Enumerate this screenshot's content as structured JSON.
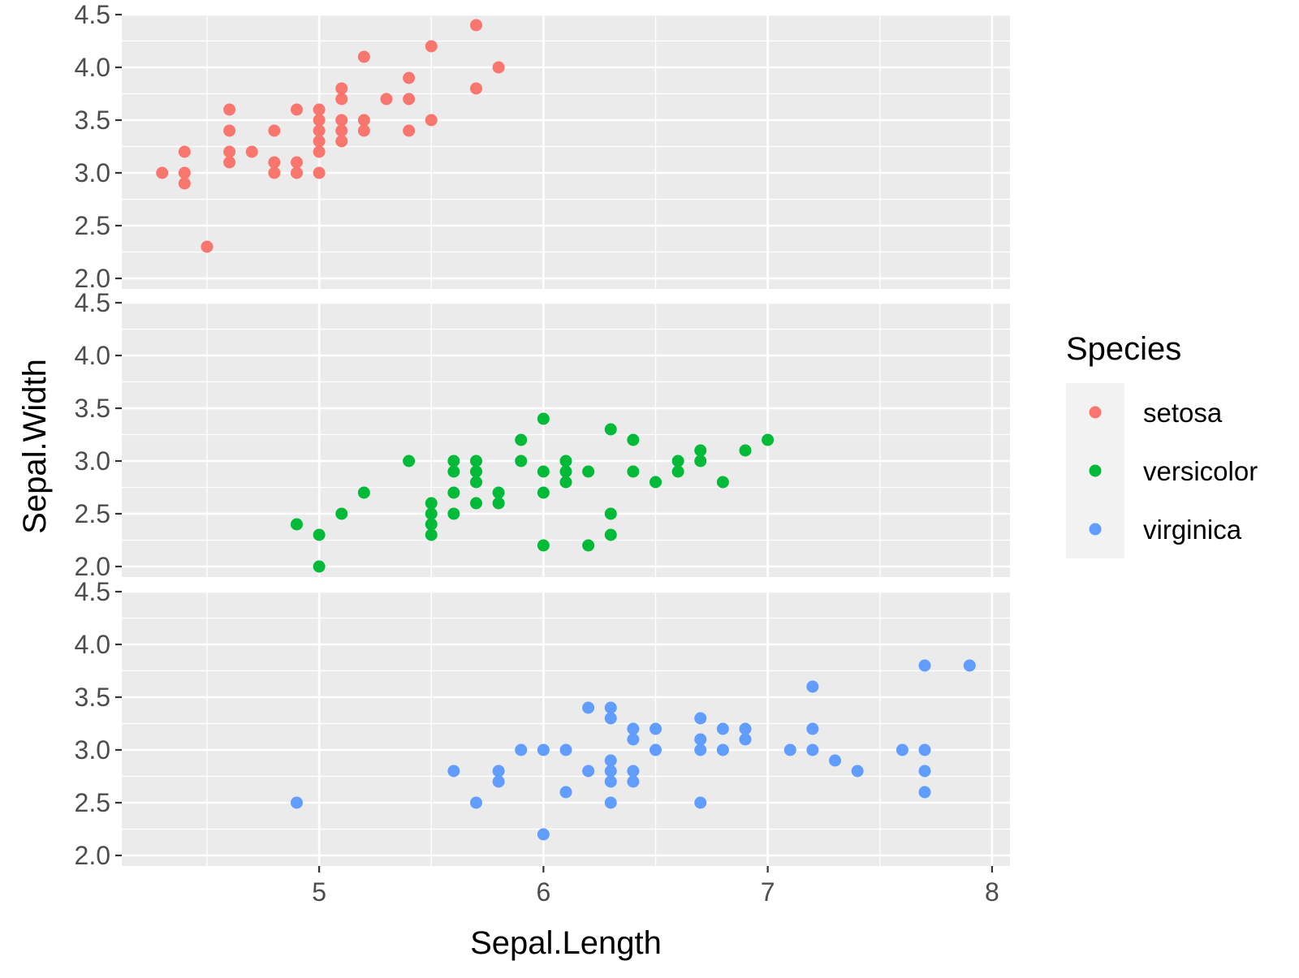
{
  "chart_data": {
    "type": "scatter",
    "facets": "vertical",
    "xlabel": "Sepal.Length",
    "ylabel": "Sepal.Width",
    "xlim": [
      4.12,
      8.08
    ],
    "ylim": [
      1.9,
      4.5
    ],
    "x_ticks": [
      "5",
      "6",
      "7",
      "8"
    ],
    "y_ticks": [
      "2.0",
      "2.5",
      "3.0",
      "3.5",
      "4.0",
      "4.5"
    ],
    "grid": true,
    "legend": {
      "title": "Species",
      "position": "right"
    },
    "series": [
      {
        "name": "setosa",
        "color": "#F8766D",
        "points": [
          [
            4.3,
            3.0
          ],
          [
            4.4,
            2.9
          ],
          [
            4.4,
            3.0
          ],
          [
            4.4,
            3.2
          ],
          [
            4.5,
            2.3
          ],
          [
            4.6,
            3.1
          ],
          [
            4.6,
            3.2
          ],
          [
            4.6,
            3.4
          ],
          [
            4.6,
            3.6
          ],
          [
            4.7,
            3.2
          ],
          [
            4.8,
            3.0
          ],
          [
            4.8,
            3.1
          ],
          [
            4.8,
            3.4
          ],
          [
            4.9,
            3.0
          ],
          [
            4.9,
            3.1
          ],
          [
            4.9,
            3.6
          ],
          [
            5.0,
            3.0
          ],
          [
            5.0,
            3.2
          ],
          [
            5.0,
            3.3
          ],
          [
            5.0,
            3.4
          ],
          [
            5.0,
            3.5
          ],
          [
            5.0,
            3.6
          ],
          [
            5.1,
            3.3
          ],
          [
            5.1,
            3.4
          ],
          [
            5.1,
            3.5
          ],
          [
            5.1,
            3.7
          ],
          [
            5.1,
            3.8
          ],
          [
            5.2,
            3.4
          ],
          [
            5.2,
            3.5
          ],
          [
            5.2,
            4.1
          ],
          [
            5.3,
            3.7
          ],
          [
            5.4,
            3.4
          ],
          [
            5.4,
            3.7
          ],
          [
            5.4,
            3.9
          ],
          [
            5.5,
            3.5
          ],
          [
            5.5,
            4.2
          ],
          [
            5.7,
            3.8
          ],
          [
            5.7,
            4.4
          ],
          [
            5.8,
            4.0
          ]
        ]
      },
      {
        "name": "versicolor",
        "color": "#00BA38",
        "points": [
          [
            4.9,
            2.4
          ],
          [
            5.0,
            2.0
          ],
          [
            5.0,
            2.3
          ],
          [
            5.1,
            2.5
          ],
          [
            5.2,
            2.7
          ],
          [
            5.4,
            3.0
          ],
          [
            5.5,
            2.3
          ],
          [
            5.5,
            2.4
          ],
          [
            5.5,
            2.5
          ],
          [
            5.5,
            2.6
          ],
          [
            5.6,
            2.5
          ],
          [
            5.6,
            2.7
          ],
          [
            5.6,
            2.9
          ],
          [
            5.6,
            3.0
          ],
          [
            5.7,
            2.6
          ],
          [
            5.7,
            2.8
          ],
          [
            5.7,
            2.9
          ],
          [
            5.7,
            3.0
          ],
          [
            5.8,
            2.6
          ],
          [
            5.8,
            2.7
          ],
          [
            5.9,
            3.0
          ],
          [
            5.9,
            3.2
          ],
          [
            6.0,
            2.2
          ],
          [
            6.0,
            2.7
          ],
          [
            6.0,
            2.9
          ],
          [
            6.0,
            3.4
          ],
          [
            6.1,
            2.8
          ],
          [
            6.1,
            2.9
          ],
          [
            6.1,
            3.0
          ],
          [
            6.2,
            2.2
          ],
          [
            6.2,
            2.9
          ],
          [
            6.3,
            2.3
          ],
          [
            6.3,
            2.5
          ],
          [
            6.3,
            3.3
          ],
          [
            6.4,
            2.9
          ],
          [
            6.4,
            3.2
          ],
          [
            6.5,
            2.8
          ],
          [
            6.6,
            2.9
          ],
          [
            6.6,
            3.0
          ],
          [
            6.7,
            3.0
          ],
          [
            6.7,
            3.1
          ],
          [
            6.8,
            2.8
          ],
          [
            6.9,
            3.1
          ],
          [
            7.0,
            3.2
          ]
        ]
      },
      {
        "name": "virginica",
        "color": "#619CFF",
        "points": [
          [
            4.9,
            2.5
          ],
          [
            5.6,
            2.8
          ],
          [
            5.7,
            2.5
          ],
          [
            5.8,
            2.7
          ],
          [
            5.8,
            2.8
          ],
          [
            5.9,
            3.0
          ],
          [
            6.0,
            2.2
          ],
          [
            6.0,
            3.0
          ],
          [
            6.1,
            2.6
          ],
          [
            6.1,
            3.0
          ],
          [
            6.2,
            2.8
          ],
          [
            6.2,
            3.4
          ],
          [
            6.3,
            2.5
          ],
          [
            6.3,
            2.7
          ],
          [
            6.3,
            2.8
          ],
          [
            6.3,
            2.9
          ],
          [
            6.3,
            3.3
          ],
          [
            6.3,
            3.4
          ],
          [
            6.4,
            2.7
          ],
          [
            6.4,
            2.8
          ],
          [
            6.4,
            3.1
          ],
          [
            6.4,
            3.2
          ],
          [
            6.5,
            3.0
          ],
          [
            6.5,
            3.2
          ],
          [
            6.7,
            2.5
          ],
          [
            6.7,
            3.0
          ],
          [
            6.7,
            3.1
          ],
          [
            6.7,
            3.3
          ],
          [
            6.8,
            3.0
          ],
          [
            6.8,
            3.2
          ],
          [
            6.9,
            3.1
          ],
          [
            6.9,
            3.2
          ],
          [
            7.1,
            3.0
          ],
          [
            7.2,
            3.0
          ],
          [
            7.2,
            3.2
          ],
          [
            7.2,
            3.6
          ],
          [
            7.3,
            2.9
          ],
          [
            7.4,
            2.8
          ],
          [
            7.6,
            3.0
          ],
          [
            7.7,
            2.6
          ],
          [
            7.7,
            2.8
          ],
          [
            7.7,
            3.0
          ],
          [
            7.7,
            3.8
          ],
          [
            7.9,
            3.8
          ]
        ]
      }
    ]
  }
}
